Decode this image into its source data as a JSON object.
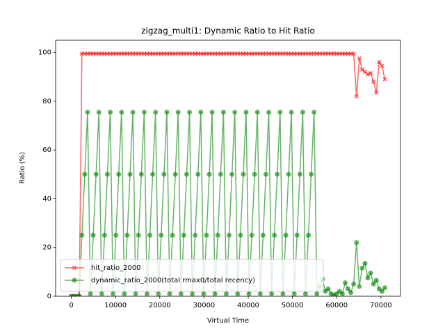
{
  "chart_data": {
    "type": "line",
    "title": "zigzag_multi1: Dynamic Ratio to Hit Ratio",
    "xlabel": "Virtual Time",
    "ylabel": "Ratio (%)",
    "x": [
      0,
      600,
      1200,
      1800,
      2400,
      3040,
      3680,
      4320,
      4960,
      5600,
      6240,
      6880,
      7520,
      8160,
      8800,
      9440,
      10080,
      10720,
      11360,
      12000,
      12640,
      13280,
      13920,
      14560,
      15200,
      15840,
      16480,
      17120,
      17760,
      18400,
      19040,
      19680,
      20320,
      20960,
      21600,
      22240,
      22880,
      23520,
      24160,
      24800,
      25440,
      26080,
      26720,
      27360,
      28000,
      28640,
      29280,
      29920,
      30560,
      31200,
      31840,
      32480,
      33120,
      33760,
      34400,
      35040,
      35680,
      36320,
      36960,
      37600,
      38240,
      38880,
      39520,
      40160,
      40800,
      41440,
      42080,
      42720,
      43360,
      44000,
      44640,
      45280,
      45920,
      46560,
      47200,
      47840,
      48480,
      49120,
      49760,
      50400,
      51040,
      51680,
      52320,
      52960,
      53600,
      54240,
      54880,
      55520,
      56160,
      56800,
      57440,
      58080,
      58720,
      59360,
      60000,
      60640,
      61280,
      61920,
      62560,
      63200,
      63840,
      64480,
      65120,
      65760,
      66400,
      67040,
      67680,
      68320,
      68960,
      69600,
      70240,
      70880
    ],
    "series": [
      {
        "name": "hit_ratio_2000",
        "color": "#ff0000",
        "marker": "x",
        "values": [
          0,
          0,
          0,
          0,
          99.5,
          99.5,
          99.5,
          99.5,
          99.5,
          99.5,
          99.5,
          99.5,
          99.5,
          99.5,
          99.5,
          99.5,
          99.5,
          99.5,
          99.5,
          99.5,
          99.5,
          99.5,
          99.5,
          99.5,
          99.5,
          99.5,
          99.5,
          99.5,
          99.5,
          99.5,
          99.5,
          99.5,
          99.5,
          99.5,
          99.5,
          99.5,
          99.5,
          99.5,
          99.5,
          99.5,
          99.5,
          99.5,
          99.5,
          99.5,
          99.5,
          99.5,
          99.5,
          99.5,
          99.5,
          99.5,
          99.5,
          99.5,
          99.5,
          99.5,
          99.5,
          99.5,
          99.5,
          99.5,
          99.5,
          99.5,
          99.5,
          99.5,
          99.5,
          99.5,
          99.5,
          99.5,
          99.5,
          99.5,
          99.5,
          99.5,
          99.5,
          99.5,
          99.5,
          99.5,
          99.5,
          99.5,
          99.5,
          99.5,
          99.5,
          99.5,
          99.5,
          99.5,
          99.5,
          99.5,
          99.5,
          99.5,
          99.5,
          99.5,
          99.5,
          99.5,
          99.5,
          99.5,
          99.5,
          99.5,
          99.5,
          99.5,
          99.5,
          99.5,
          99.5,
          99.5,
          99.5,
          82,
          97.5,
          93,
          92,
          91,
          91.5,
          88,
          83.5,
          96,
          94.5,
          89
        ]
      },
      {
        "name": "dynamic_ratio_2000(total rmax0/total recency)",
        "color": "#008000",
        "marker": "o",
        "values": [
          0,
          0,
          0,
          0,
          25,
          50,
          75.5,
          1,
          25,
          50,
          75.5,
          1,
          25,
          50,
          75.5,
          1,
          25,
          50,
          75.5,
          1,
          25,
          50,
          75.5,
          1,
          25,
          50,
          75.5,
          1,
          25,
          50,
          75.5,
          1,
          25,
          50,
          75.5,
          1,
          25,
          50,
          75.5,
          1,
          25,
          50,
          75.5,
          1,
          25,
          50,
          75.5,
          1,
          25,
          50,
          75.5,
          1,
          25,
          50,
          75.5,
          1,
          25,
          50,
          75.5,
          1,
          25,
          50,
          75.5,
          1,
          25,
          50,
          75.5,
          1,
          25,
          50,
          75.5,
          1,
          25,
          50,
          75.5,
          1,
          25,
          50,
          75.5,
          1,
          25,
          50,
          75.5,
          1,
          25,
          50,
          75.5,
          1,
          4,
          7,
          2,
          3,
          1,
          0.5,
          1,
          2,
          1,
          5.5,
          3,
          1.5,
          5,
          22,
          4,
          11.5,
          13.5,
          7.5,
          9.5,
          5,
          6.5,
          3,
          2,
          3.5
        ]
      }
    ],
    "xlim": [
      -3544,
      74424
    ],
    "xticks": [
      0,
      10000,
      20000,
      30000,
      40000,
      50000,
      60000,
      70000
    ],
    "ylim": [
      0,
      105
    ],
    "yticks": [
      0,
      20,
      40,
      60,
      80,
      100
    ],
    "grid": false,
    "legend": "lower left"
  }
}
